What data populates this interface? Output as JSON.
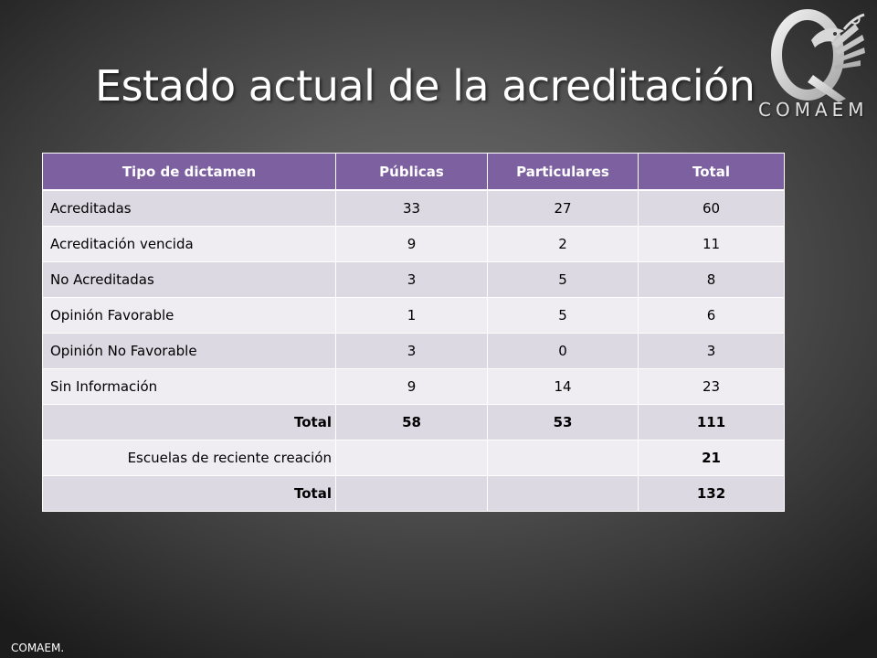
{
  "slide": {
    "title": "Estado actual de la acreditación",
    "footer": "COMAEM.",
    "logo_text": "COMAEM"
  },
  "table": {
    "headers": [
      "Tipo de dictamen",
      "Públicas",
      "Particulares",
      "Total"
    ],
    "rows": [
      {
        "label": "Acreditadas",
        "publicas": "33",
        "particulares": "27",
        "total": "60"
      },
      {
        "label": "Acreditación vencida",
        "publicas": "9",
        "particulares": "2",
        "total": "11"
      },
      {
        "label": "No Acreditadas",
        "publicas": "3",
        "particulares": "5",
        "total": "8"
      },
      {
        "label": "Opinión Favorable",
        "publicas": "1",
        "particulares": "5",
        "total": "6"
      },
      {
        "label": "Opinión No Favorable",
        "publicas": "3",
        "particulares": "0",
        "total": "3"
      },
      {
        "label": "Sin Información",
        "publicas": "9",
        "particulares": "14",
        "total": "23"
      }
    ],
    "subtotal": {
      "label": "Total",
      "publicas": "58",
      "particulares": "53",
      "total": "111"
    },
    "new_schools": {
      "label": "Escuelas de reciente creación",
      "publicas": "",
      "particulares": "",
      "total": "21"
    },
    "grand_total": {
      "label": "Total",
      "publicas": "",
      "particulares": "",
      "total": "132"
    }
  },
  "colors": {
    "header_bg": "#7d60a0",
    "row_odd": "#ddd9e3",
    "row_even": "#efedf1",
    "title_text": "#ffffff"
  }
}
